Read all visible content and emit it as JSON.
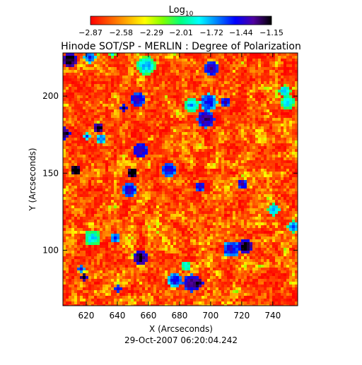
{
  "chart_data": {
    "type": "heatmap",
    "title": "Hinode SOT/SP - MERLIN : Degree of Polarization",
    "xlabel": "X (Arcseconds)",
    "ylabel": "Y (Arcseconds)",
    "xlim": [
      605,
      756
    ],
    "ylim": [
      64,
      228
    ],
    "x_ticks": [
      "620",
      "640",
      "660",
      "680",
      "700",
      "720",
      "740"
    ],
    "y_ticks": [
      "100",
      "150",
      "200"
    ],
    "timestamp": "29-Oct-2007 06:20:04.242",
    "colorbar": {
      "label_base": "Log",
      "label_sub": "10",
      "min": -2.87,
      "max": -1.15,
      "tick_labels": [
        "-2.87",
        "-2.58",
        "-2.29",
        "-2.01",
        "-1.72",
        "-1.44",
        "-1.15"
      ],
      "colors": [
        "#ff0000",
        "#ff5500",
        "#ffaa00",
        "#ffff00",
        "#80ff00",
        "#00ff80",
        "#00ffff",
        "#0080ff",
        "#0000ff",
        "#5000a0",
        "#000000"
      ]
    },
    "field": {
      "description_value_range": [
        -2.87,
        -1.15
      ],
      "typical_values": [
        -2.87,
        -2.6,
        -2.3
      ],
      "patch_values": [
        -1.8,
        -1.5
      ]
    }
  }
}
